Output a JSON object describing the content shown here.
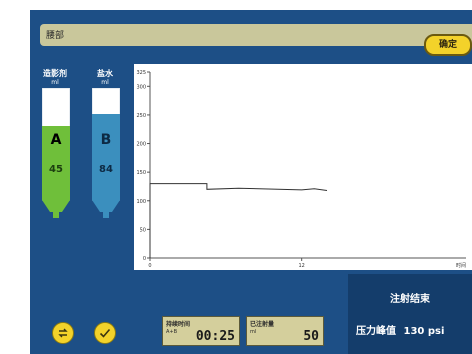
{
  "header": {
    "label": "腰部",
    "confirm_label": "确定"
  },
  "syringes": [
    {
      "label": "造影剂",
      "unit": "ml",
      "letter": "A",
      "value": "45",
      "fill_fraction": 0.66,
      "color": "#6fbf3a"
    },
    {
      "label": "盐水",
      "unit": "ml",
      "letter": "B",
      "value": "84",
      "fill_fraction": 0.77,
      "color": "#3b8fbe"
    }
  ],
  "chart_data": {
    "type": "line",
    "y_ticks": [
      "0",
      "50",
      "100",
      "150",
      "200",
      "250",
      "300",
      "325"
    ],
    "x_ticks": [
      "0",
      "12"
    ],
    "x_end_label": "时间",
    "ylim": [
      0,
      325
    ],
    "xlim": [
      0,
      25
    ],
    "series": [
      {
        "points": [
          [
            0,
            0
          ],
          [
            0,
            130
          ],
          [
            4.5,
            130
          ],
          [
            4.5,
            120
          ],
          [
            7,
            122
          ],
          [
            12,
            119
          ],
          [
            13,
            121
          ],
          [
            14,
            118
          ]
        ]
      }
    ]
  },
  "status": {
    "title": "注射结束",
    "peak_label": "压力峰值",
    "peak_value": "130 psi"
  },
  "bottom": {
    "left_icon": "swap-icon",
    "right_icon": "check-icon",
    "info": [
      {
        "title": "持续时间",
        "sub": "A+B",
        "value": "00:25"
      },
      {
        "title": "已注射量",
        "sub": "ml",
        "value": "50"
      }
    ]
  }
}
